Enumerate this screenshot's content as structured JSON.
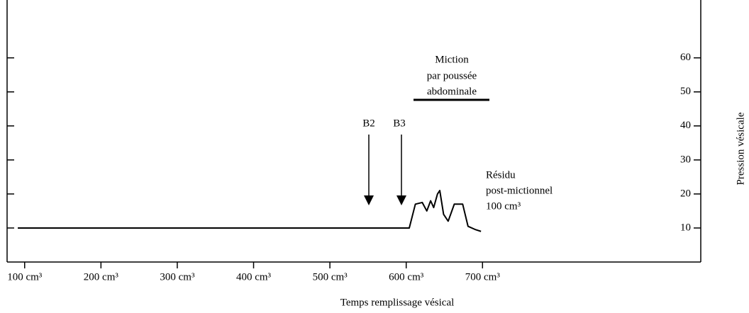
{
  "chart_data": {
    "type": "line",
    "x_label": "Temps remplissage vésical",
    "y_label": "Pression vésicale",
    "annotations": [
      "B2",
      "B3",
      "Miction",
      "par poussée",
      "abdominale",
      "Résidu",
      "post-mictionnel",
      "100 cm³"
    ],
    "x": [
      91,
      604,
      612,
      621,
      627,
      632,
      636,
      641,
      644,
      649,
      655,
      663,
      674,
      681,
      691,
      698
    ],
    "series": [
      {
        "color": "#000000",
        "values": [
          10,
          10,
          17,
          17.5,
          15,
          18,
          16,
          20,
          21,
          14,
          12,
          17,
          17,
          10.5,
          9.5,
          9
        ]
      }
    ],
    "xlim": [
      77,
      986
    ],
    "xticks": [
      {
        "value": 100,
        "label": "100 cm³"
      },
      {
        "value": 200,
        "label": "200 cm³"
      },
      {
        "value": 300,
        "label": "300 cm³"
      },
      {
        "value": 400,
        "label": "400 cm³"
      },
      {
        "value": 500,
        "label": "500 cm³"
      },
      {
        "value": 600,
        "label": "600 cm³"
      },
      {
        "value": 700,
        "label": "700 cm³"
      }
    ],
    "ylim": [
      0,
      77
    ],
    "yticks": [
      10,
      20,
      30,
      40,
      50,
      60
    ]
  }
}
